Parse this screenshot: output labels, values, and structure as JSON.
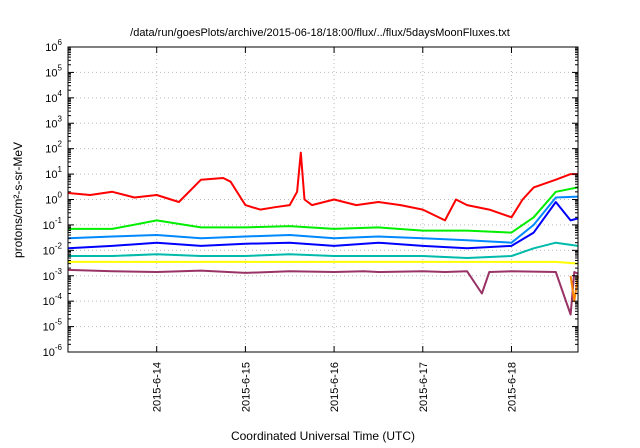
{
  "chart_data": {
    "type": "line",
    "title": "/data/run/goesPlots/archive/2015-06-18/18:00/flux/../flux/5daysMoonFluxes.txt",
    "xlabel": "Coordinated Universal Time (UTC)",
    "ylabel": "protons/cm²-s-sr-MeV",
    "yscale": "log",
    "ylim": [
      1e-06,
      1000000.0
    ],
    "xlim": [
      "2015-06-13 00:00",
      "2015-06-18 18:00"
    ],
    "grid": true,
    "legend": "none",
    "xticks": [
      "2015-6-14",
      "2015-6-15",
      "2015-6-16",
      "2015-6-17",
      "2015-6-18"
    ],
    "yticks": [
      {
        "value": 1e-06,
        "base": "10",
        "exp": "-6"
      },
      {
        "value": 1e-05,
        "base": "10",
        "exp": "-5"
      },
      {
        "value": 0.0001,
        "base": "10",
        "exp": "-4"
      },
      {
        "value": 0.001,
        "base": "10",
        "exp": "-3"
      },
      {
        "value": 0.01,
        "base": "10",
        "exp": "-2"
      },
      {
        "value": 0.1,
        "base": "10",
        "exp": "-1"
      },
      {
        "value": 1,
        "base": "10",
        "exp": "0"
      },
      {
        "value": 10,
        "base": "10",
        "exp": "1"
      },
      {
        "value": 100,
        "base": "10",
        "exp": "2"
      },
      {
        "value": 1000,
        "base": "10",
        "exp": "3"
      },
      {
        "value": 10000,
        "base": "10",
        "exp": "4"
      },
      {
        "value": 100000,
        "base": "10",
        "exp": "5"
      },
      {
        "value": 1000000,
        "base": "10",
        "exp": "6"
      }
    ],
    "series": [
      {
        "color": "#ff0000",
        "x": [
          "2015-06-13 00:00",
          "2015-06-13 06:00",
          "2015-06-13 12:00",
          "2015-06-13 18:00",
          "2015-06-14 00:00",
          "2015-06-14 06:00",
          "2015-06-14 12:00",
          "2015-06-14 18:00",
          "2015-06-14 20:00",
          "2015-06-15 00:00",
          "2015-06-15 04:00",
          "2015-06-15 08:00",
          "2015-06-15 12:00",
          "2015-06-15 14:00",
          "2015-06-15 15:00",
          "2015-06-15 16:00",
          "2015-06-15 18:00",
          "2015-06-16 00:00",
          "2015-06-16 06:00",
          "2015-06-16 12:00",
          "2015-06-16 18:00",
          "2015-06-17 00:00",
          "2015-06-17 06:00",
          "2015-06-17 09:00",
          "2015-06-17 12:00",
          "2015-06-17 18:00",
          "2015-06-18 00:00",
          "2015-06-18 03:00",
          "2015-06-18 06:00",
          "2015-06-18 12:00",
          "2015-06-18 16:00",
          "2015-06-18 18:00"
        ],
        "y": [
          1.8,
          1.5,
          2.0,
          1.2,
          1.5,
          0.8,
          6.0,
          7.0,
          5.0,
          0.6,
          0.4,
          0.5,
          0.6,
          2.0,
          70,
          1.0,
          0.6,
          1.0,
          0.6,
          0.8,
          0.6,
          0.4,
          0.15,
          1.0,
          0.6,
          0.4,
          0.2,
          1.0,
          3.0,
          6.0,
          10,
          10
        ]
      },
      {
        "color": "#00ee00",
        "x": [
          "2015-06-13 00:00",
          "2015-06-13 12:00",
          "2015-06-14 00:00",
          "2015-06-14 12:00",
          "2015-06-15 00:00",
          "2015-06-15 12:00",
          "2015-06-16 00:00",
          "2015-06-16 12:00",
          "2015-06-17 00:00",
          "2015-06-17 12:00",
          "2015-06-18 00:00",
          "2015-06-18 06:00",
          "2015-06-18 12:00",
          "2015-06-18 18:00"
        ],
        "y": [
          0.07,
          0.07,
          0.15,
          0.08,
          0.08,
          0.09,
          0.07,
          0.08,
          0.06,
          0.06,
          0.05,
          0.2,
          2.0,
          3.0
        ]
      },
      {
        "color": "#0000ff",
        "x": [
          "2015-06-13 00:00",
          "2015-06-13 12:00",
          "2015-06-14 00:00",
          "2015-06-14 12:00",
          "2015-06-15 00:00",
          "2015-06-15 12:00",
          "2015-06-16 00:00",
          "2015-06-16 12:00",
          "2015-06-17 00:00",
          "2015-06-17 12:00",
          "2015-06-18 00:00",
          "2015-06-18 06:00",
          "2015-06-18 12:00",
          "2015-06-18 16:00",
          "2015-06-18 18:00"
        ],
        "y": [
          0.012,
          0.015,
          0.02,
          0.015,
          0.018,
          0.02,
          0.015,
          0.02,
          0.015,
          0.012,
          0.015,
          0.05,
          0.8,
          0.15,
          0.18
        ]
      },
      {
        "color": "#0088ff",
        "x": [
          "2015-06-13 00:00",
          "2015-06-13 12:00",
          "2015-06-14 00:00",
          "2015-06-14 12:00",
          "2015-06-15 00:00",
          "2015-06-15 12:00",
          "2015-06-16 00:00",
          "2015-06-16 12:00",
          "2015-06-17 00:00",
          "2015-06-17 12:00",
          "2015-06-18 00:00",
          "2015-06-18 06:00",
          "2015-06-18 12:00",
          "2015-06-18 18:00"
        ],
        "y": [
          0.03,
          0.035,
          0.04,
          0.03,
          0.035,
          0.04,
          0.03,
          0.035,
          0.03,
          0.025,
          0.02,
          0.1,
          1.2,
          1.3
        ]
      },
      {
        "color": "#00bbaa",
        "x": [
          "2015-06-13 00:00",
          "2015-06-13 12:00",
          "2015-06-14 00:00",
          "2015-06-14 12:00",
          "2015-06-15 00:00",
          "2015-06-15 12:00",
          "2015-06-16 00:00",
          "2015-06-16 12:00",
          "2015-06-17 00:00",
          "2015-06-17 12:00",
          "2015-06-18 00:00",
          "2015-06-18 06:00",
          "2015-06-18 12:00",
          "2015-06-18 18:00"
        ],
        "y": [
          0.006,
          0.006,
          0.007,
          0.006,
          0.006,
          0.007,
          0.006,
          0.006,
          0.006,
          0.005,
          0.006,
          0.012,
          0.02,
          0.015
        ]
      },
      {
        "color": "#ffff00",
        "x": [
          "2015-06-13 00:00",
          "2015-06-14 00:00",
          "2015-06-15 00:00",
          "2015-06-16 00:00",
          "2015-06-17 00:00",
          "2015-06-18 00:00",
          "2015-06-18 12:00",
          "2015-06-18 18:00"
        ],
        "y": [
          0.0035,
          0.0035,
          0.0035,
          0.0035,
          0.0035,
          0.0035,
          0.0035,
          0.003
        ]
      },
      {
        "color": "#993366",
        "x": [
          "2015-06-13 00:00",
          "2015-06-13 12:00",
          "2015-06-14 00:00",
          "2015-06-14 12:00",
          "2015-06-15 00:00",
          "2015-06-15 12:00",
          "2015-06-16 00:00",
          "2015-06-16 08:00",
          "2015-06-16 12:00",
          "2015-06-17 00:00",
          "2015-06-17 06:00",
          "2015-06-17 12:00",
          "2015-06-17 16:00",
          "2015-06-17 18:00",
          "2015-06-18 00:00",
          "2015-06-18 12:00",
          "2015-06-18 16:00",
          "2015-06-18 17:00",
          "2015-06-18 18:00"
        ],
        "y": [
          0.0017,
          0.0015,
          0.0014,
          0.0016,
          0.0013,
          0.0015,
          0.0014,
          0.0015,
          0.0014,
          0.0015,
          0.0014,
          0.0015,
          0.0002,
          0.0014,
          0.0015,
          0.0014,
          3e-05,
          0.0014,
          0.0012
        ]
      },
      {
        "color": "#ff8800",
        "x": [
          "2015-06-18 16:00",
          "2015-06-18 17:00",
          "2015-06-18 18:00"
        ],
        "y": [
          0.001,
          0.0001,
          0.001
        ]
      }
    ]
  }
}
